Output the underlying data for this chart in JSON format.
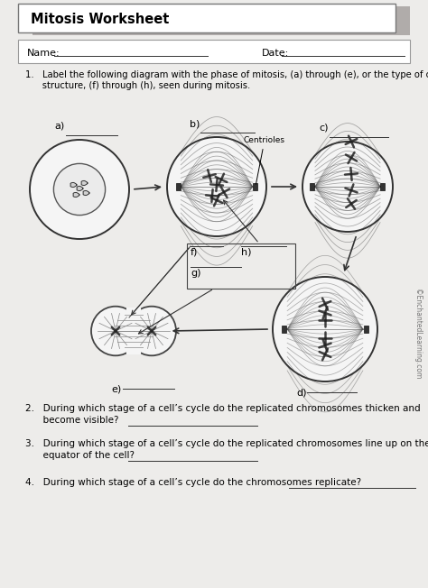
{
  "title": "Mitosis Worksheet",
  "name_label": "Name:",
  "date_label": "Date:",
  "q1_line1": "1.   Label the following diagram with the phase of mitosis, (a) through (e), or the type of cell",
  "q1_line2": "      structure, (f) through (h), seen during mitosis.",
  "q2_line1": "2.   During which stage of a cell’s cycle do the replicated chromosomes thicken and",
  "q2_line2": "      become visible?",
  "q3_line1": "3.   During which stage of a cell’s cycle do the replicated chromosomes line up on the",
  "q3_line2": "      equator of the cell?",
  "q4_line1": "4.   During which stage of a cell’s cycle do the chromosomes replicate?",
  "copyright": "©EnchantedLearning.com",
  "cell_labels": [
    "a)",
    "b)",
    "c)",
    "d)",
    "e)",
    "f)",
    "g)",
    "h)"
  ],
  "centrioles_label": "Centrioles",
  "bg_color": "#edecea",
  "title_shadow_color": "#b0acaa",
  "title_box_color": "#ffffff",
  "name_box_color": "#ffffff",
  "text_color": "#1a1a1a"
}
